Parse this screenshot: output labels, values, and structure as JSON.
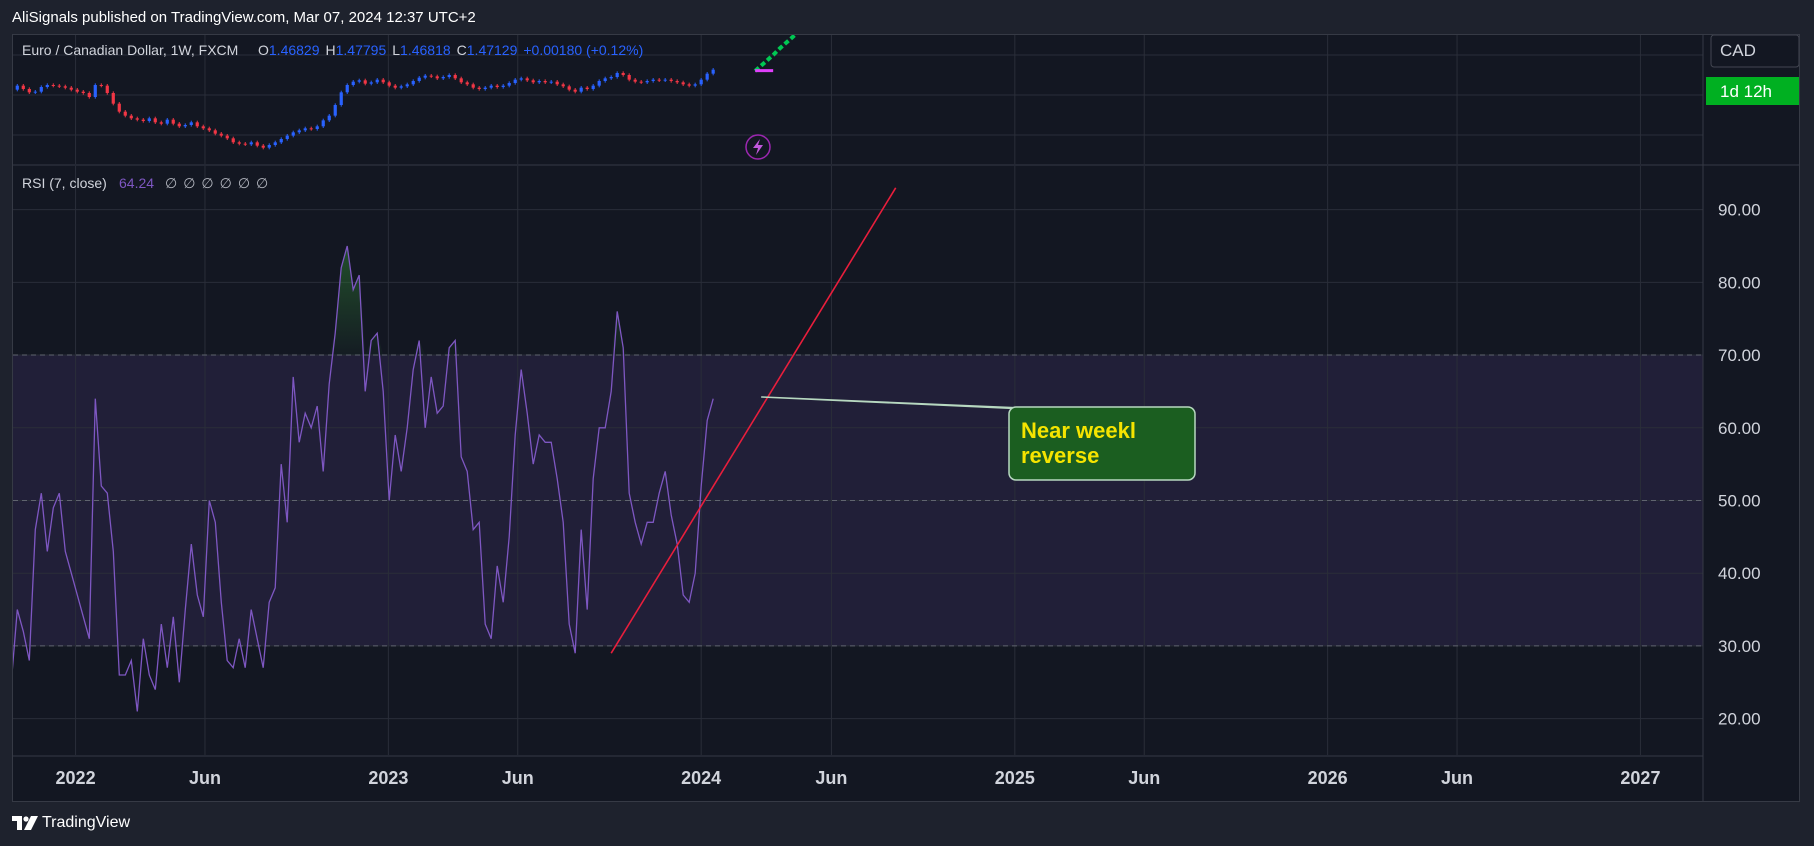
{
  "caption": "AliSignals published on TradingView.com, Mar 07, 2024 12:37 UTC+2",
  "footer_brand": "TradingView",
  "colors": {
    "background": "#131722",
    "grid": "#2a2e39",
    "rsi_line": "#7e57c2",
    "rsi_band": "#211f38",
    "trendline": "#e91e3c",
    "candle_up": "#2962ff",
    "candle_down": "#f23645",
    "projection": "#00c853",
    "projection_marker": "#e040fb",
    "annotation_fill": "#1b5e20",
    "annotation_text": "#f5e400",
    "currency_badge_bg": "#00b021",
    "legend_blue": "#2962ff"
  },
  "price_legend": {
    "symbol": "Euro / Canadian Dollar, 1W, FXCM",
    "open_label": "O",
    "open": "1.46829",
    "high_label": "H",
    "high": "1.47795",
    "low_label": "L",
    "low": "1.46818",
    "close_label": "C",
    "close": "1.47129",
    "change": "+0.00180 (+0.12%)"
  },
  "price_axis": {
    "currency": "CAD",
    "countdown": "1d 12h"
  },
  "rsi_legend": {
    "name": "RSI (7, close)",
    "value": "64.24",
    "empty_values": [
      "∅",
      "∅",
      "∅",
      "∅",
      "∅",
      "∅"
    ]
  },
  "annotation": {
    "line1": "Near weekl",
    "line2": "reverse"
  },
  "chart_data": {
    "type": "line",
    "title": "",
    "xlabel": "",
    "ylabel": "",
    "ylim": [
      15,
      96
    ],
    "xlim": [
      "2021-10-20",
      "2027-03-15"
    ],
    "x_ticks": [
      {
        "label": "2022",
        "date": "2022-01-01"
      },
      {
        "label": "Jun",
        "date": "2022-06-01"
      },
      {
        "label": "2023",
        "date": "2023-01-01"
      },
      {
        "label": "Jun",
        "date": "2023-06-01"
      },
      {
        "label": "2024",
        "date": "2024-01-01"
      },
      {
        "label": "Jun",
        "date": "2024-06-01"
      },
      {
        "label": "2025",
        "date": "2025-01-01"
      },
      {
        "label": "Jun",
        "date": "2025-06-01"
      },
      {
        "label": "2026",
        "date": "2026-01-01"
      },
      {
        "label": "Jun",
        "date": "2026-06-01"
      },
      {
        "label": "2027",
        "date": "2027-01-01"
      }
    ],
    "y_ticks": [
      20,
      30,
      40,
      50,
      60,
      70,
      80,
      90
    ],
    "y_tick_labels": [
      "20.00",
      "30.00",
      "40.00",
      "50.00",
      "60.00",
      "70.00",
      "80.00",
      "90.00"
    ],
    "levels": {
      "overbought": 70,
      "middle": 50,
      "oversold": 30
    },
    "grid": true,
    "series": [
      {
        "start_date": "2021-10-18",
        "step_days": 7,
        "values": [
          25,
          35,
          32,
          28,
          46,
          51,
          43,
          49,
          51,
          43,
          40,
          37,
          34,
          31,
          64,
          52,
          51,
          43,
          26,
          26,
          28,
          21,
          31,
          26,
          24,
          33,
          27,
          34,
          25,
          35,
          44,
          37,
          34,
          50,
          47,
          36,
          28,
          27,
          31,
          27,
          35,
          31,
          27,
          36,
          38,
          55,
          47,
          67,
          58,
          62,
          60,
          63,
          54,
          66,
          73,
          82,
          85,
          79,
          81,
          65,
          72,
          73,
          65,
          50,
          59,
          54,
          60,
          68,
          72,
          60,
          67,
          62,
          63,
          71,
          72,
          56,
          54,
          46,
          47,
          33,
          31,
          41,
          36,
          45,
          59,
          68,
          62,
          55,
          59,
          58,
          58,
          53,
          47,
          33,
          29,
          46,
          35,
          53,
          60,
          60,
          65,
          76,
          71,
          51,
          47,
          44,
          47,
          47,
          51,
          54,
          48,
          44,
          37,
          36,
          40,
          52,
          61,
          64
        ]
      }
    ],
    "trendline": [
      {
        "date": "2023-09-18",
        "value": 29
      },
      {
        "date": "2024-03-04",
        "value": 64
      },
      {
        "date": "2024-08-15",
        "value": 93
      }
    ],
    "annotation_target": {
      "date": "2024-03-11",
      "value": 64.24
    },
    "price_panel": {
      "type": "candlestick",
      "start_date": "2021-10-18",
      "step_days": 7,
      "closes": [
        1.441,
        1.447,
        1.442,
        1.437,
        1.438,
        1.445,
        1.448,
        1.447,
        1.446,
        1.444,
        1.441,
        1.438,
        1.436,
        1.43,
        1.448,
        1.447,
        1.436,
        1.42,
        1.408,
        1.402,
        1.398,
        1.396,
        1.394,
        1.398,
        1.392,
        1.39,
        1.396,
        1.39,
        1.386,
        1.388,
        1.392,
        1.386,
        1.383,
        1.38,
        1.375,
        1.372,
        1.368,
        1.362,
        1.36,
        1.359,
        1.362,
        1.357,
        1.354,
        1.358,
        1.362,
        1.367,
        1.372,
        1.377,
        1.38,
        1.383,
        1.382,
        1.386,
        1.395,
        1.402,
        1.418,
        1.437,
        1.448,
        1.453,
        1.455,
        1.45,
        1.452,
        1.456,
        1.452,
        1.447,
        1.444,
        1.446,
        1.449,
        1.454,
        1.459,
        1.462,
        1.461,
        1.458,
        1.46,
        1.463,
        1.458,
        1.452,
        1.449,
        1.444,
        1.442,
        1.444,
        1.447,
        1.445,
        1.447,
        1.451,
        1.456,
        1.458,
        1.455,
        1.452,
        1.454,
        1.452,
        1.453,
        1.449,
        1.446,
        1.441,
        1.438,
        1.444,
        1.442,
        1.447,
        1.454,
        1.458,
        1.46,
        1.466,
        1.463,
        1.456,
        1.453,
        1.452,
        1.454,
        1.456,
        1.455,
        1.456,
        1.454,
        1.452,
        1.449,
        1.447,
        1.449,
        1.456,
        1.465,
        1.471
      ]
    },
    "projection": {
      "start_date": "2024-03-04",
      "values": [
        1.469,
        1.477,
        1.485,
        1.493,
        1.502,
        1.51,
        1.518,
        1.526,
        1.534,
        1.542
      ]
    }
  }
}
